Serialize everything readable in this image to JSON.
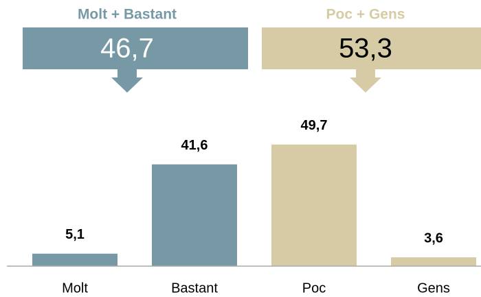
{
  "chart_data": {
    "type": "bar",
    "categories": [
      "Molt",
      "Bastant",
      "Poc",
      "Gens"
    ],
    "values": [
      5.1,
      41.6,
      49.7,
      3.6
    ],
    "value_labels": [
      "5,1",
      "41,6",
      "49,7",
      "3,6"
    ],
    "colors": [
      "#7799a5",
      "#7799a5",
      "#d6cba4",
      "#d6cba4"
    ],
    "ylim": [
      0,
      60
    ],
    "groups": [
      {
        "label": "Molt + Bastant",
        "value": 46.7,
        "value_label": "46,7",
        "color": "#7799a5",
        "text_color": "#ffffff"
      },
      {
        "label": "Poc + Gens",
        "value": 53.3,
        "value_label": "53,3",
        "color": "#d6cba4",
        "text_color": "#000000"
      }
    ]
  }
}
